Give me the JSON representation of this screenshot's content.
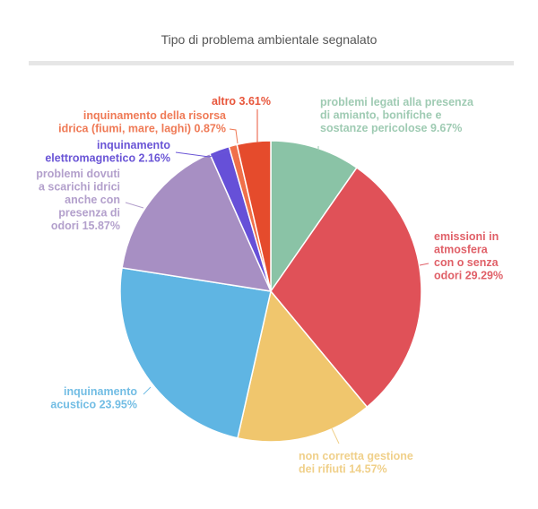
{
  "chart_data": {
    "type": "pie",
    "title": "Tipo di problema ambientale segnalato",
    "start_angle_deg": 0,
    "direction": "clockwise",
    "slices": [
      {
        "label": "problemi legati alla presenza di amianto, bonifiche e sostanze pericolose",
        "value": 9.67,
        "color": "#8ac3a6"
      },
      {
        "label": "emissioni in atmosfera con o senza odori",
        "value": 29.29,
        "color": "#e05158"
      },
      {
        "label": "non corretta gestione dei rifiuti",
        "value": 14.57,
        "color": "#f0c66d"
      },
      {
        "label": "inquinamento acustico",
        "value": 23.95,
        "color": "#5fb5e3"
      },
      {
        "label": "problemi dovuti a scarichi idrici anche con presenza di odori",
        "value": 15.87,
        "color": "#a78fc3"
      },
      {
        "label": "inquinamento elettromagnetico",
        "value": 2.16,
        "color": "#6650d8"
      },
      {
        "label": "inquinamento della risorsa idrica (fiumi, mare, laghi)",
        "value": 0.87,
        "color": "#f0704a"
      },
      {
        "label": "altro",
        "value": 3.61,
        "color": "#e54b2c"
      }
    ],
    "labels_text": [
      [
        "problemi legati alla presenza",
        "di amianto, bonifiche e",
        "sostanze pericolose 9.67%"
      ],
      [
        "emissioni in",
        "atmosfera",
        "con o senza",
        "odori 29.29%"
      ],
      [
        "non corretta gestione",
        "dei rifiuti 14.57%"
      ],
      [
        "inquinamento",
        "acustico 23.95%"
      ],
      [
        "problemi dovuti",
        "a scarichi idrici",
        "anche con",
        "presenza di",
        "odori 15.87%"
      ],
      [
        "inquinamento",
        "elettromagnetico 2.16%"
      ],
      [
        "inquinamento della risorsa",
        "idrica (fiumi, mare, laghi) 0.87%"
      ],
      [
        "altro 3.61%"
      ]
    ],
    "label_colors": [
      "#9fcbb3",
      "#e06068",
      "#f0d08a",
      "#72bde4",
      "#b3a0cc",
      "#6a55d6",
      "#ef7a56",
      "#e8553a"
    ],
    "legend": "none (labels on slices)"
  }
}
